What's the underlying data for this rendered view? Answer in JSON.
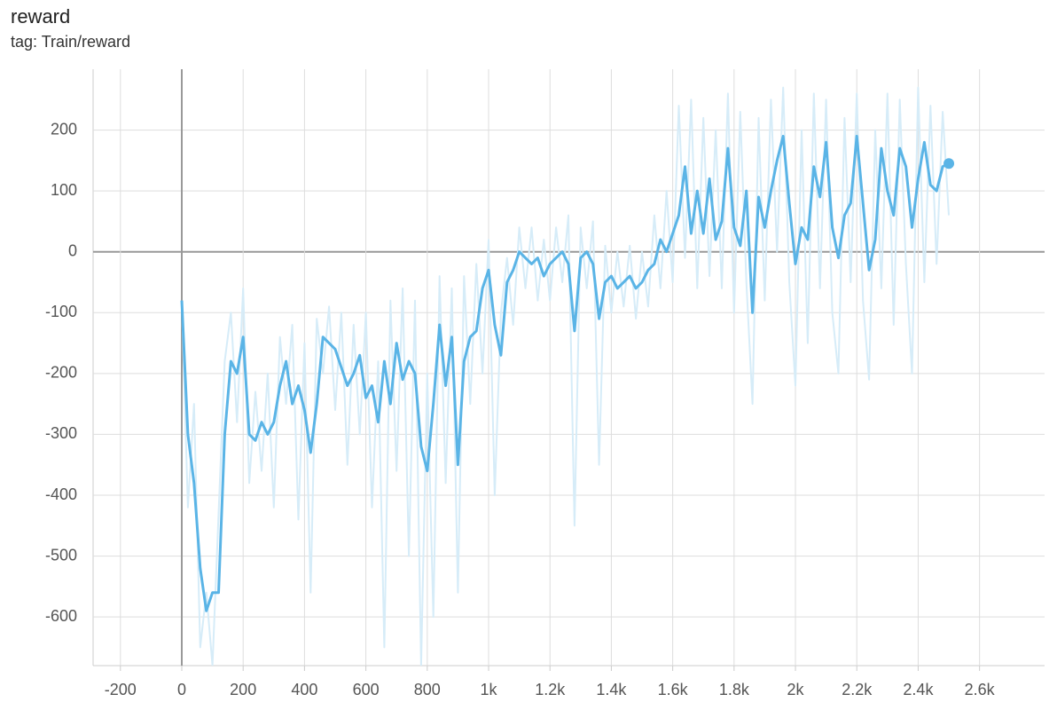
{
  "chart_data": {
    "type": "line",
    "title": "reward",
    "subtitle": "tag: Train/reward",
    "x": [
      0,
      20,
      40,
      60,
      80,
      100,
      120,
      140,
      160,
      180,
      200,
      220,
      240,
      260,
      280,
      300,
      320,
      340,
      360,
      380,
      400,
      420,
      440,
      460,
      480,
      500,
      520,
      540,
      560,
      580,
      600,
      620,
      640,
      660,
      680,
      700,
      720,
      740,
      760,
      780,
      800,
      820,
      840,
      860,
      880,
      900,
      920,
      940,
      960,
      980,
      1000,
      1020,
      1040,
      1060,
      1080,
      1100,
      1120,
      1140,
      1160,
      1180,
      1200,
      1220,
      1240,
      1260,
      1280,
      1300,
      1320,
      1340,
      1360,
      1380,
      1400,
      1420,
      1440,
      1460,
      1480,
      1500,
      1520,
      1540,
      1560,
      1580,
      1600,
      1620,
      1640,
      1660,
      1680,
      1700,
      1720,
      1740,
      1760,
      1780,
      1800,
      1820,
      1840,
      1860,
      1880,
      1900,
      1920,
      1940,
      1960,
      1980,
      2000,
      2020,
      2040,
      2060,
      2080,
      2100,
      2120,
      2140,
      2160,
      2180,
      2200,
      2220,
      2240,
      2260,
      2280,
      2300,
      2320,
      2340,
      2360,
      2380,
      2400,
      2420,
      2440,
      2460,
      2480,
      2500
    ],
    "series": [
      {
        "color": "#d6ecf8",
        "values": [
          -80,
          -420,
          -250,
          -650,
          -560,
          -680,
          -430,
          -180,
          -100,
          -280,
          -60,
          -380,
          -230,
          -360,
          -200,
          -420,
          -140,
          -250,
          -120,
          -440,
          -150,
          -560,
          -110,
          -200,
          -90,
          -260,
          -100,
          -350,
          -120,
          -300,
          -100,
          -420,
          -180,
          -650,
          -80,
          -360,
          -60,
          -500,
          -80,
          -680,
          -200,
          -600,
          -40,
          -380,
          -60,
          -560,
          -40,
          -250,
          -20,
          -200,
          20,
          -400,
          -100,
          -10,
          -120,
          40,
          -60,
          40,
          -80,
          20,
          -80,
          40,
          -50,
          60,
          -450,
          40,
          -60,
          50,
          -350,
          10,
          -100,
          0,
          -90,
          10,
          -110,
          0,
          -90,
          60,
          -60,
          100,
          -50,
          240,
          -10,
          250,
          -60,
          220,
          -40,
          200,
          -60,
          260,
          -100,
          230,
          -50,
          -250,
          220,
          -80,
          250,
          0,
          270,
          -50,
          -220,
          200,
          -150,
          260,
          -60,
          250,
          -100,
          -200,
          220,
          -50,
          260,
          -80,
          -210,
          200,
          -60,
          260,
          -120,
          250,
          -20,
          -200,
          270,
          -50,
          240,
          -20,
          230,
          60
        ]
      },
      {
        "color": "#5ab4e6",
        "values": [
          -80,
          -300,
          -380,
          -520,
          -590,
          -560,
          -560,
          -300,
          -180,
          -200,
          -140,
          -300,
          -310,
          -280,
          -300,
          -280,
          -220,
          -180,
          -250,
          -220,
          -260,
          -330,
          -250,
          -140,
          -150,
          -160,
          -190,
          -220,
          -200,
          -170,
          -240,
          -220,
          -280,
          -180,
          -250,
          -150,
          -210,
          -180,
          -200,
          -320,
          -360,
          -250,
          -120,
          -220,
          -140,
          -350,
          -180,
          -140,
          -130,
          -60,
          -30,
          -120,
          -170,
          -50,
          -30,
          0,
          -10,
          -20,
          -10,
          -40,
          -20,
          -10,
          0,
          -20,
          -130,
          -10,
          0,
          -20,
          -110,
          -50,
          -40,
          -60,
          -50,
          -40,
          -60,
          -50,
          -30,
          -20,
          20,
          0,
          30,
          60,
          140,
          30,
          100,
          30,
          120,
          20,
          50,
          170,
          40,
          10,
          100,
          -100,
          90,
          40,
          100,
          150,
          190,
          80,
          -20,
          40,
          20,
          140,
          90,
          180,
          40,
          -10,
          60,
          80,
          190,
          80,
          -30,
          20,
          170,
          100,
          60,
          170,
          140,
          40,
          120,
          180,
          110,
          100,
          140,
          145
        ]
      }
    ],
    "xlim": [
      -289,
      2812
    ],
    "ylim": [
      -680,
      300
    ],
    "xticks": [
      -200,
      0,
      200,
      400,
      600,
      800,
      {
        "value": 1000,
        "label": "1k"
      },
      {
        "value": 1200,
        "label": "1.2k"
      },
      {
        "value": 1400,
        "label": "1.4k"
      },
      {
        "value": 1600,
        "label": "1.6k"
      },
      {
        "value": 1800,
        "label": "1.8k"
      },
      {
        "value": 2000,
        "label": "2k"
      },
      {
        "value": 2200,
        "label": "2.2k"
      },
      {
        "value": 2400,
        "label": "2.4k"
      },
      {
        "value": 2600,
        "label": "2.6k"
      }
    ],
    "yticks": [
      -600,
      -500,
      -400,
      -300,
      -200,
      -100,
      0,
      100,
      200
    ],
    "grid": true
  }
}
